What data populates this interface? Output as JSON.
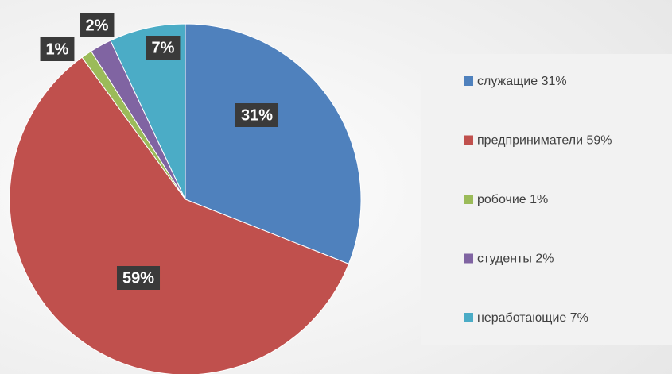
{
  "chart_data": {
    "type": "pie",
    "categories": [
      "служащие 31%",
      "предприниматели 59%",
      "робочие 1%",
      "студенты 2%",
      "неработающие 7%"
    ],
    "values": [
      31,
      59,
      1,
      2,
      7
    ],
    "value_labels": [
      "31%",
      "59%",
      "1%",
      "2%",
      "7%"
    ],
    "colors": [
      "#4f81bd",
      "#c0504d",
      "#9bbb59",
      "#8064a2",
      "#4bacc6"
    ],
    "legend": "right"
  }
}
